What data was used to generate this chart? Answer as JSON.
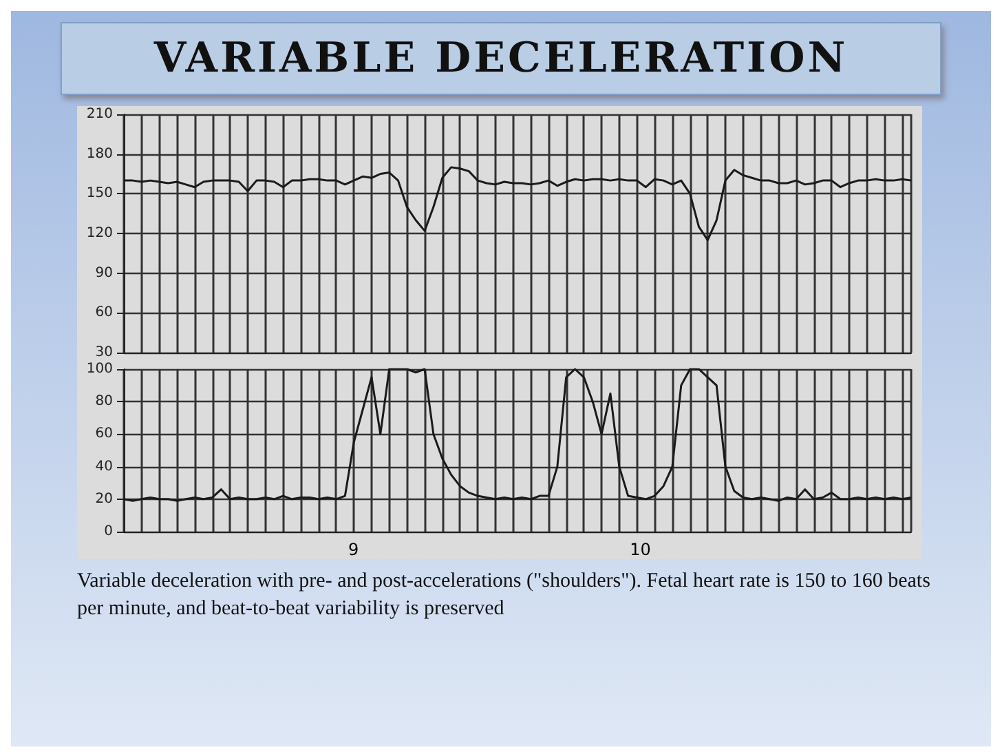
{
  "chart_data": [
    {
      "type": "line",
      "title": "VARIABLE DECELERATION",
      "categories": [
        null,
        null,
        null,
        null,
        null,
        null,
        null,
        null,
        null,
        null,
        null,
        null,
        null,
        null,
        null,
        null,
        null,
        null,
        null,
        null,
        null,
        null,
        null,
        null,
        null,
        null,
        null,
        null,
        null,
        null,
        null,
        null,
        null,
        null,
        null,
        null,
        null,
        null,
        null,
        null,
        null,
        null,
        null,
        null,
        null,
        null,
        null,
        null,
        null,
        null,
        null,
        null,
        null,
        null,
        null,
        null,
        null,
        null,
        null,
        null,
        null,
        null,
        null,
        null,
        null,
        null,
        null,
        null,
        null,
        null,
        null,
        null,
        null,
        null,
        null,
        null,
        null,
        null,
        null,
        null,
        null,
        null,
        null,
        null,
        null,
        null,
        null,
        null,
        null,
        null
      ],
      "series": [
        {
          "color": "#1a1a1a",
          "values": [
            160,
            160,
            159,
            160,
            159,
            158,
            159,
            157,
            155,
            159,
            160,
            160,
            160,
            159,
            152,
            160,
            160,
            159,
            155,
            160,
            160,
            161,
            161,
            160,
            160,
            157,
            160,
            163,
            162,
            165,
            166,
            160,
            140,
            130,
            122,
            140,
            162,
            170,
            169,
            167,
            160,
            158,
            157,
            159,
            158,
            158,
            157,
            158,
            160,
            156,
            159,
            161,
            160,
            161,
            161,
            160,
            161,
            160,
            160,
            155,
            161,
            160,
            157,
            160,
            150,
            125,
            115,
            130,
            160,
            168,
            164,
            162,
            160,
            160,
            158,
            158,
            160,
            157,
            158,
            160,
            160,
            155,
            158,
            160,
            160,
            161,
            160,
            160,
            161,
            160
          ]
        }
      ],
      "ylim": [
        30,
        210
      ],
      "yticks": [
        30,
        60,
        90,
        120,
        150,
        180,
        210
      ],
      "grid": true,
      "tick_labels": "y",
      "line_style": "solid"
    },
    {
      "type": "line",
      "categories": [
        null,
        null,
        null,
        null,
        null,
        null,
        null,
        null,
        null,
        null,
        null,
        null,
        null,
        null,
        null,
        null,
        null,
        null,
        null,
        null,
        null,
        null,
        null,
        null,
        null,
        null,
        null,
        null,
        null,
        null,
        null,
        null,
        null,
        null,
        null,
        null,
        null,
        null,
        null,
        null,
        null,
        null,
        null,
        null,
        null,
        null,
        null,
        null,
        null,
        null,
        null,
        null,
        null,
        null,
        null,
        null,
        null,
        null,
        null,
        null,
        null,
        null,
        null,
        null,
        null,
        null,
        null,
        null,
        null,
        null,
        null,
        null,
        null,
        null,
        null,
        null,
        null,
        null,
        null,
        null,
        null,
        null,
        null,
        null,
        null,
        null,
        null,
        null,
        null,
        null
      ],
      "series": [
        {
          "color": "#1a1a1a",
          "values": [
            20,
            19,
            20,
            21,
            20,
            20,
            19,
            20,
            21,
            20,
            21,
            26,
            20,
            21,
            20,
            20,
            21,
            20,
            22,
            20,
            21,
            21,
            20,
            21,
            20,
            22,
            55,
            75,
            95,
            60,
            100,
            100,
            100,
            98,
            100,
            60,
            45,
            35,
            28,
            24,
            22,
            21,
            20,
            21,
            20,
            21,
            20,
            22,
            22,
            40,
            95,
            100,
            95,
            80,
            60,
            85,
            40,
            22,
            21,
            20,
            22,
            28,
            40,
            90,
            100,
            100,
            95,
            90,
            40,
            25,
            21,
            20,
            21,
            20,
            19,
            21,
            20,
            26,
            20,
            21,
            24,
            20,
            20,
            21,
            20,
            21,
            20,
            21,
            20,
            21
          ]
        }
      ],
      "ylim": [
        0,
        100
      ],
      "yticks": [
        0,
        20,
        40,
        60,
        80,
        100
      ],
      "grid": true,
      "tick_labels": "y",
      "line_style": "solid",
      "annotations": [
        "9",
        "10",
        "Variable deceleration with pre- and post-accelerations (\"shoulders\"). Fetal heart rate is 150 to 160 beats per minute, and beat-to-beat variability is preserved"
      ]
    }
  ]
}
